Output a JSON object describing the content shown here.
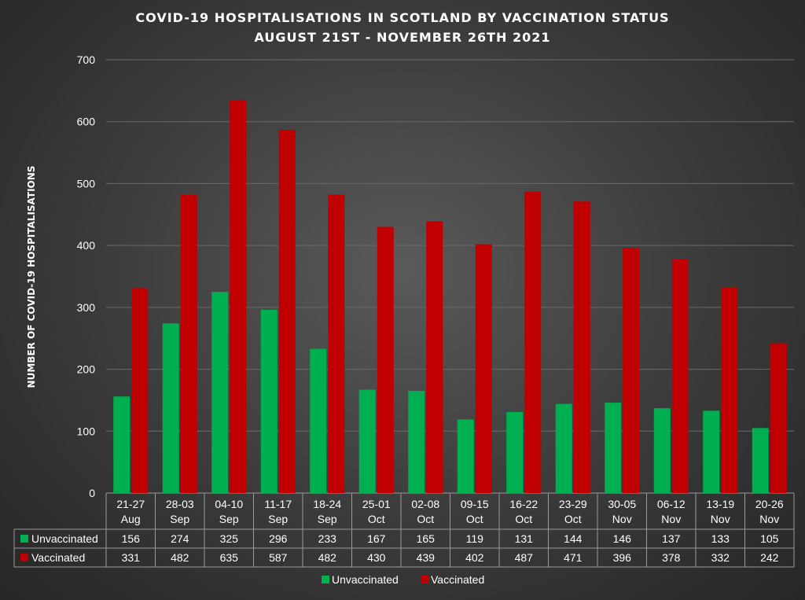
{
  "chart_data": {
    "type": "bar",
    "title": "COVID-19 HOSPITALISATIONS IN SCOTLAND BY VACCINATION STATUS",
    "subtitle": "AUGUST 21ST - NOVEMBER 26TH 2021",
    "ylabel": "NUMBER OF COVID-19 HOSPITALISATIONS",
    "xlabel": "",
    "ylim": [
      0,
      700
    ],
    "yticks": [
      "0",
      "100",
      "200",
      "300",
      "400",
      "500",
      "600",
      "700"
    ],
    "grid": true,
    "legend_position": "bottom",
    "categories": [
      [
        "21-27",
        "Aug"
      ],
      [
        "28-03",
        "Sep"
      ],
      [
        "04-10",
        "Sep"
      ],
      [
        "11-17",
        "Sep"
      ],
      [
        "18-24",
        "Sep"
      ],
      [
        "25-01",
        "Oct"
      ],
      [
        "02-08",
        "Oct"
      ],
      [
        "09-15",
        "Oct"
      ],
      [
        "16-22",
        "Oct"
      ],
      [
        "23-29",
        "Oct"
      ],
      [
        "30-05",
        "Nov"
      ],
      [
        "06-12",
        "Nov"
      ],
      [
        "13-19",
        "Nov"
      ],
      [
        "20-26",
        "Nov"
      ]
    ],
    "series": [
      {
        "name": "Unvaccinated",
        "color": "#00b050",
        "values": [
          156,
          274,
          325,
          296,
          233,
          167,
          165,
          119,
          131,
          144,
          146,
          137,
          133,
          105
        ]
      },
      {
        "name": "Vaccinated",
        "color": "#c00000",
        "values": [
          331,
          482,
          635,
          587,
          482,
          430,
          439,
          402,
          487,
          471,
          396,
          378,
          332,
          242
        ]
      }
    ]
  }
}
